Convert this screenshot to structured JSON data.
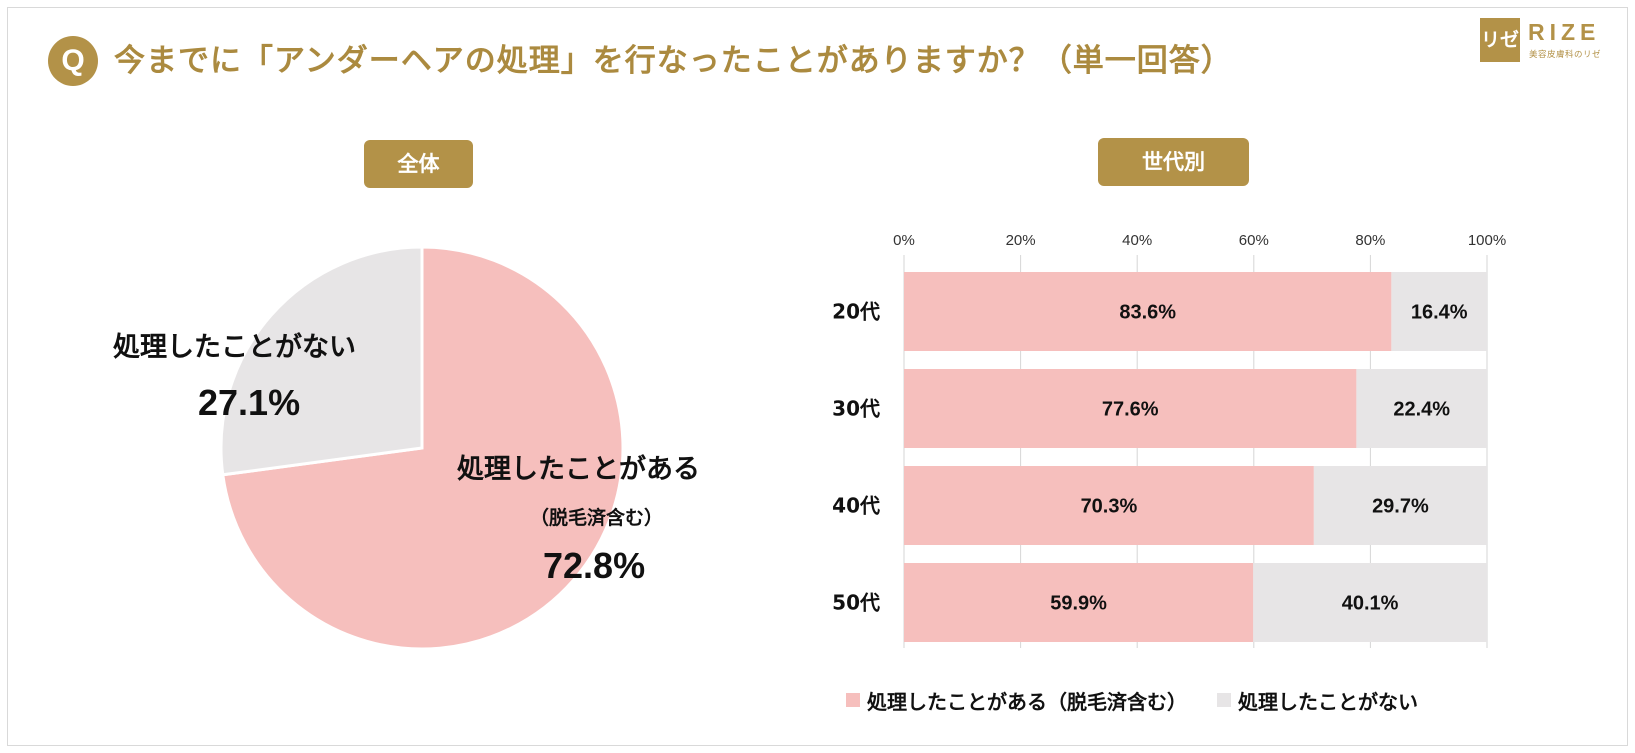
{
  "header": {
    "badge": "Q",
    "title": "今までに「アンダーヘアの処理」を行なったことがありますか？（単一回答）"
  },
  "logo": {
    "mark": "リゼ",
    "name": "RIZE",
    "sub": "美容皮膚科のリゼ"
  },
  "colors": {
    "gold": "#b39248",
    "pink": "#f6bfbd",
    "gray": "#e7e5e6"
  },
  "chart_data": [
    {
      "type": "pie",
      "title": "全体",
      "slices": [
        {
          "label": "処理したことがある",
          "sublabel": "（脱毛済含む）",
          "value": 72.8,
          "display": "72.8%"
        },
        {
          "label": "処理したことがない",
          "value": 27.1,
          "display": "27.1%"
        }
      ]
    },
    {
      "type": "bar",
      "orientation": "horizontal",
      "stacked": true,
      "title": "世代別",
      "categories": [
        "20代",
        "30代",
        "40代",
        "50代"
      ],
      "series": [
        {
          "name": "処理したことがある（脱毛済含む）",
          "values": [
            83.6,
            77.6,
            70.3,
            59.9
          ],
          "labels": [
            "83.6%",
            "77.6%",
            "70.3%",
            "59.9%"
          ]
        },
        {
          "name": "処理したことがない",
          "values": [
            16.4,
            22.4,
            29.7,
            40.1
          ],
          "labels": [
            "16.4%",
            "22.4%",
            "29.7%",
            "40.1%"
          ]
        }
      ],
      "xlim": [
        0,
        100
      ],
      "xticks": [
        "0%",
        "20%",
        "40%",
        "60%",
        "80%",
        "100%"
      ],
      "legend": "bottom"
    }
  ]
}
